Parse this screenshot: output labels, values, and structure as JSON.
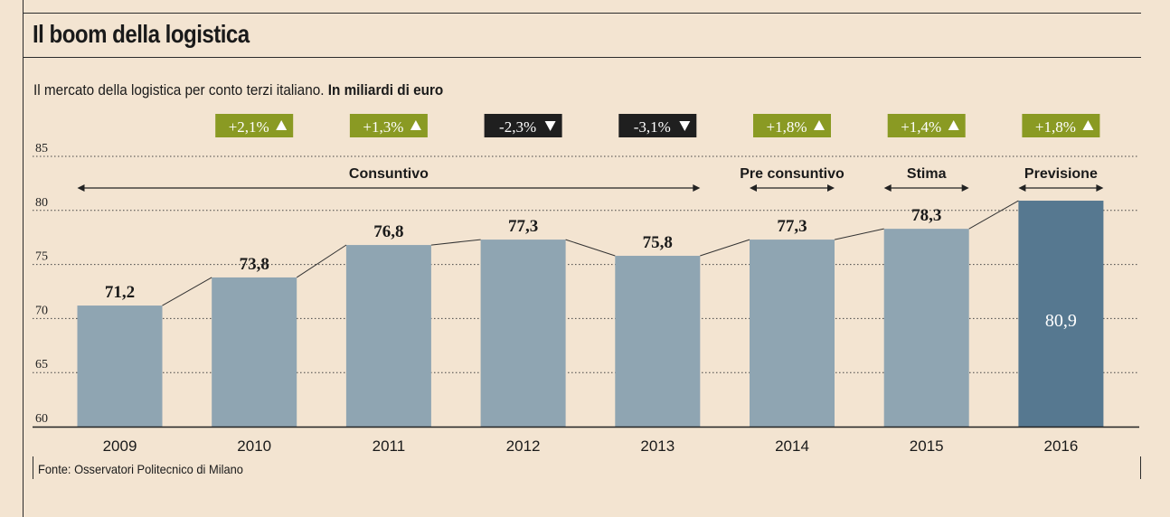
{
  "title": "Il boom della logistica",
  "subtitle": {
    "text": "Il mercato della logistica per conto terzi italiano.",
    "unit": "In miliardi di euro"
  },
  "source": "Fonte: Osservatori Politecnico di Milano",
  "colors": {
    "background": "#f3e4d1",
    "bar": "#8fa5b2",
    "bar_highlight": "#567890",
    "badge_up": "#8a9a23",
    "badge_down": "#1f1f1f"
  },
  "chart_data": {
    "type": "bar",
    "categories": [
      "2009",
      "2010",
      "2011",
      "2012",
      "2013",
      "2014",
      "2015",
      "2016"
    ],
    "values": [
      71.2,
      73.8,
      76.8,
      77.3,
      75.8,
      77.3,
      78.3,
      80.9
    ],
    "value_labels": [
      "71,2",
      "73,8",
      "76,8",
      "77,3",
      "75,8",
      "77,3",
      "78,3",
      "80,9"
    ],
    "ylim": [
      60,
      85
    ],
    "yticks": [
      60,
      65,
      70,
      75,
      80,
      85
    ],
    "highlight_index": 7,
    "changes": [
      {
        "label": "+2,1%",
        "direction": "up"
      },
      {
        "label": "+1,3%",
        "direction": "up"
      },
      {
        "label": "-2,3%",
        "direction": "down"
      },
      {
        "label": "-3,1%",
        "direction": "down"
      },
      {
        "label": "+1,8%",
        "direction": "up"
      },
      {
        "label": "+1,4%",
        "direction": "up"
      },
      {
        "label": "+1,8%",
        "direction": "up"
      }
    ],
    "periods": [
      {
        "label": "Consuntivo",
        "from": 0,
        "to": 4
      },
      {
        "label": "Pre consuntivo",
        "from": 5,
        "to": 5
      },
      {
        "label": "Stima",
        "from": 6,
        "to": 6
      },
      {
        "label": "Previsione",
        "from": 7,
        "to": 7
      }
    ],
    "grid": true
  }
}
